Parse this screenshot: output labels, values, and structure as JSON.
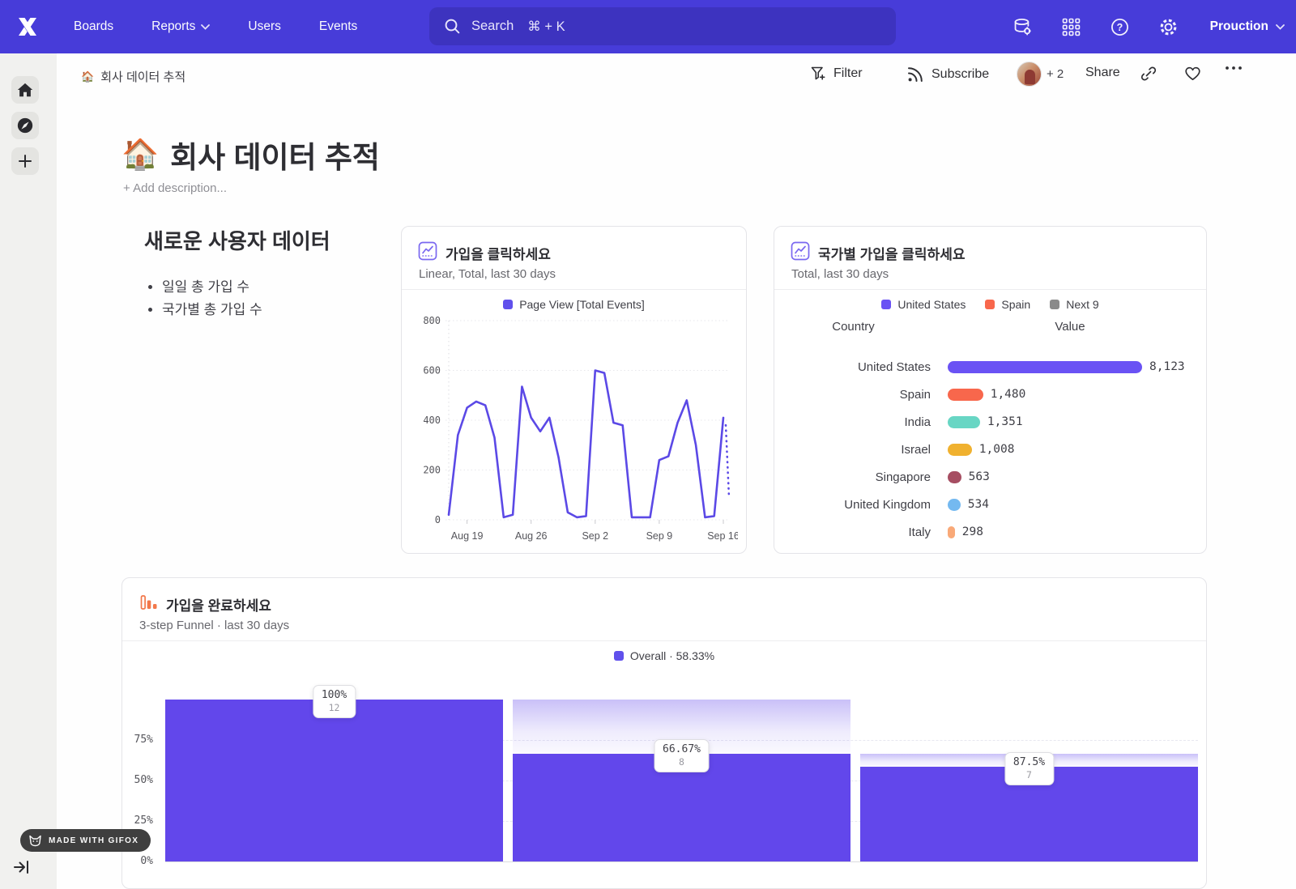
{
  "nav": {
    "items": [
      {
        "label": "Boards"
      },
      {
        "label": "Reports"
      },
      {
        "label": "Users"
      },
      {
        "label": "Events"
      }
    ],
    "search_label": "Search",
    "search_shortcut": "⌘ + K",
    "project": "Prouction",
    "icons": [
      {
        "name": "data-settings-icon"
      },
      {
        "name": "apps-grid-icon"
      },
      {
        "name": "help-icon"
      },
      {
        "name": "settings-gear-icon"
      }
    ],
    "colors": {
      "bg": "#473CD9",
      "search_bg": "#3D33BF"
    }
  },
  "sidebar": {
    "icons": [
      {
        "name": "home-icon"
      },
      {
        "name": "compass-icon"
      },
      {
        "name": "plus-icon"
      },
      {
        "name": "collapse-icon"
      }
    ]
  },
  "breadcrumb": {
    "emoji": "🏠",
    "label": "회사 데이터 추적"
  },
  "toolbar": {
    "filter_label": "Filter",
    "subscribe_label": "Subscribe",
    "collab_extra": "+ 2",
    "share_label": "Share",
    "icons": [
      {
        "name": "filter-funnel-icon"
      },
      {
        "name": "subscribe-rss-icon"
      },
      {
        "name": "link-icon"
      },
      {
        "name": "heart-icon"
      },
      {
        "name": "more-ellipsis-icon"
      }
    ]
  },
  "page": {
    "emoji": "🏠",
    "title": "회사 데이터 추적",
    "add_description": "+ Add description..."
  },
  "text_tile": {
    "heading": "새로운 사용자 데이터",
    "bullets": [
      "일일 총 가입 수",
      "국가별 총 가입 수"
    ]
  },
  "chart_data": [
    {
      "type": "line",
      "title": "가입을 클릭하세요",
      "subtitle": "Linear, Total, last 30 days",
      "legend": [
        {
          "label": "Page View [Total Events]",
          "color": "#6050EC"
        }
      ],
      "line_color": "#5B49E6",
      "ylim": [
        0,
        800
      ],
      "y_ticks": [
        0,
        200,
        400,
        600,
        800
      ],
      "x_tick_labels": [
        "Aug 19",
        "Aug 26",
        "Sep 2",
        "Sep 9",
        "Sep 16"
      ],
      "x_tick_indices": [
        2,
        9,
        16,
        23,
        30
      ],
      "values": [
        20,
        340,
        450,
        475,
        460,
        330,
        10,
        20,
        535,
        410,
        355,
        410,
        250,
        30,
        10,
        15,
        600,
        590,
        390,
        380,
        10,
        10,
        10,
        240,
        255,
        390,
        480,
        300,
        10,
        15,
        410
      ],
      "incomplete_tail": {
        "from": 380,
        "to": 90
      },
      "grid": true,
      "legend_position": "top-center"
    },
    {
      "type": "bar",
      "title": "국가별 가입을 클릭하세요",
      "subtitle": "Total, last 30 days",
      "legend": [
        {
          "label": "United States",
          "color": "#6A52F4"
        },
        {
          "label": "Spain",
          "color": "#F8674C"
        },
        {
          "label": "Next 9",
          "color": "#8A8A8A"
        }
      ],
      "columns": [
        "Country",
        "Value"
      ],
      "rows": [
        {
          "country": "United States",
          "value": "8,123",
          "num": 8123,
          "color": "#6A52F4"
        },
        {
          "country": "Spain",
          "value": "1,480",
          "num": 1480,
          "color": "#F8674C"
        },
        {
          "country": "India",
          "value": "1,351",
          "num": 1351,
          "color": "#68D6C4"
        },
        {
          "country": "Israel",
          "value": "1,008",
          "num": 1008,
          "color": "#F0B12F"
        },
        {
          "country": "Singapore",
          "value": "563",
          "num": 563,
          "color": "#A64E62"
        },
        {
          "country": "United Kingdom",
          "value": "534",
          "num": 534,
          "color": "#74B9F0"
        },
        {
          "country": "Italy",
          "value": "298",
          "num": 298,
          "color": "#F9A978"
        },
        {
          "country": "",
          "value": "",
          "num": 120,
          "color": "#3F4FA5",
          "partial": true
        }
      ],
      "legend_position": "top-center"
    },
    {
      "type": "funnel",
      "title": "가입을 완료하세요",
      "subtitle": "3-step Funnel · last 30 days",
      "legend": [
        {
          "label": "Overall · 58.33%",
          "color": "#6050EC"
        }
      ],
      "bar_color": "#6247EB",
      "y_ticks": [
        "75%",
        "50%",
        "25%",
        "0%"
      ],
      "steps": [
        {
          "conversion": "100%",
          "count": "12",
          "overall_pct": 100,
          "prev_overall_pct": 100
        },
        {
          "conversion": "66.67%",
          "count": "8",
          "overall_pct": 66.67,
          "prev_overall_pct": 100
        },
        {
          "conversion": "87.5%",
          "count": "7",
          "overall_pct": 58.33,
          "prev_overall_pct": 66.67
        }
      ],
      "legend_position": "top-center"
    }
  ],
  "badge": {
    "label": "MADE WITH GIFOX"
  }
}
